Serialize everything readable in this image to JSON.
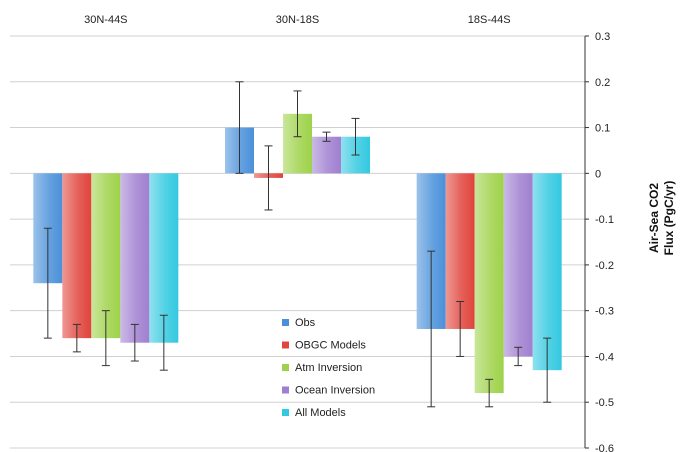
{
  "chart_data": {
    "type": "bar",
    "categories": [
      "30N-44S",
      "30N-18S",
      "18S-44S"
    ],
    "series": [
      {
        "name": "Obs",
        "color": "#4a90d9",
        "values": [
          -0.24,
          0.1,
          -0.34
        ],
        "err_low": [
          -0.36,
          0.0,
          -0.51
        ],
        "err_high": [
          -0.12,
          0.2,
          -0.17
        ]
      },
      {
        "name": "OBGC Models",
        "color": "#e0443c",
        "values": [
          -0.36,
          -0.01,
          -0.34
        ],
        "err_low": [
          -0.39,
          -0.08,
          -0.4
        ],
        "err_high": [
          -0.33,
          0.06,
          -0.28
        ]
      },
      {
        "name": "Atm Inversion",
        "color": "#9ed24a",
        "values": [
          -0.36,
          0.13,
          -0.48
        ],
        "err_low": [
          -0.42,
          0.08,
          -0.51
        ],
        "err_high": [
          -0.3,
          0.18,
          -0.45
        ]
      },
      {
        "name": "Ocean Inversion",
        "color": "#a07fd0",
        "values": [
          -0.37,
          0.08,
          -0.4
        ],
        "err_low": [
          -0.41,
          0.07,
          -0.42
        ],
        "err_high": [
          -0.33,
          0.09,
          -0.38
        ]
      },
      {
        "name": "All Models",
        "color": "#33c9e0",
        "values": [
          -0.37,
          0.08,
          -0.43
        ],
        "err_low": [
          -0.43,
          0.04,
          -0.5
        ],
        "err_high": [
          -0.31,
          0.12,
          -0.36
        ]
      }
    ],
    "ylabel": "Air-Sea CO2 Flux (PgC/yr)",
    "ylabel_lines": [
      "Air-Sea CO2",
      "Flux (PgC/yr)"
    ],
    "ylim": [
      -0.6,
      0.3
    ],
    "yticks": [
      0.3,
      0.2,
      0.1,
      0,
      -0.1,
      -0.2,
      -0.3,
      -0.4,
      -0.5,
      -0.6
    ],
    "ytick_labels": [
      "0.3",
      "0.2",
      "0.1",
      "0",
      "-0.1",
      "-0.2",
      "-0.3",
      "-0.4",
      "-0.5",
      "-0.6"
    ],
    "grid": true,
    "legend_position": "center-bottom",
    "y_axis_side": "right",
    "category_labels_position": "top"
  }
}
